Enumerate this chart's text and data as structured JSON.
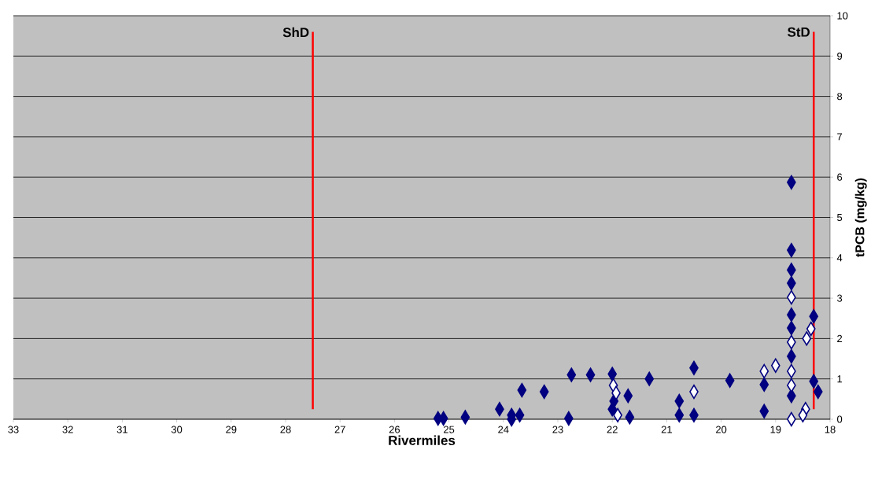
{
  "chart_data": {
    "type": "scatter",
    "xlabel": "Rivermiles",
    "ylabel": "tPCB (mg/kg)",
    "xlim": [
      33,
      18
    ],
    "ylim": [
      0,
      10
    ],
    "xticks": [
      33,
      32,
      31,
      30,
      29,
      28,
      27,
      26,
      25,
      24,
      23,
      22,
      21,
      20,
      19,
      18
    ],
    "yticks": [
      0,
      1,
      2,
      3,
      4,
      5,
      6,
      7,
      8,
      9,
      10
    ],
    "grid": "y",
    "marker": "diamond",
    "series": [
      {
        "color": "#000080",
        "x": [
          25.2,
          25.1,
          24.7,
          24.07,
          23.85,
          23.85,
          23.7,
          23.66,
          23.25,
          22.75,
          22.8,
          22.4,
          22.0,
          22.0,
          21.97,
          21.71,
          21.68,
          21.32,
          20.77,
          20.77,
          20.5,
          20.5,
          19.84,
          19.21,
          19.21,
          18.71,
          18.71,
          18.71,
          18.71,
          18.71,
          18.71,
          18.71,
          18.71,
          18.3,
          18.3,
          18.22
        ],
        "values": [
          0.02,
          0.02,
          0.05,
          0.25,
          0.1,
          0.0,
          0.1,
          0.72,
          0.68,
          1.1,
          0.02,
          1.1,
          1.12,
          0.25,
          0.45,
          0.58,
          0.05,
          1.0,
          0.45,
          0.1,
          1.27,
          0.1,
          0.96,
          0.2,
          0.86,
          5.87,
          4.19,
          3.7,
          3.37,
          2.59,
          2.26,
          1.56,
          0.58,
          2.55,
          0.94,
          0.68
        ]
      },
      {
        "color": "#000080",
        "x": [
          21.98,
          21.93,
          21.9,
          20.5,
          19.21,
          19.0,
          18.71,
          18.71,
          18.71,
          18.71,
          18.71,
          18.35,
          18.43,
          18.45,
          18.5
        ],
        "values": [
          0.84,
          0.65,
          0.1,
          0.68,
          1.19,
          1.33,
          3.02,
          1.91,
          1.19,
          0.84,
          0.0,
          2.24,
          2.0,
          0.25,
          0.1
        ]
      }
    ],
    "ref_lines": [
      {
        "axis": "x",
        "value": 27.5,
        "label": "ShD",
        "color": "#ff0000"
      },
      {
        "axis": "x",
        "value": 18.3,
        "label": "StD",
        "color": "#ff0000"
      }
    ]
  }
}
